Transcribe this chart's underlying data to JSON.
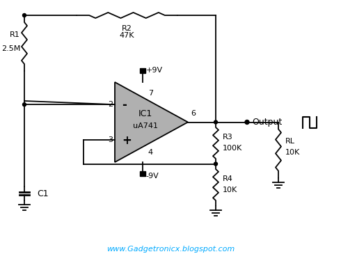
{
  "background_color": "#ffffff",
  "line_color": "#000000",
  "op_amp_fill": "#b0b0b0",
  "website_text": "www.Gadgetronicx.blogspot.com",
  "website_color": "#00aaff",
  "R1_label": "R1",
  "R1_value": "2.5M",
  "R2_label": "R2",
  "R2_value": "47K",
  "R3_label": "R3",
  "R3_value": "100K",
  "R4_label": "R4",
  "R4_value": "10K",
  "RL_label": "RL",
  "RL_value": "10K",
  "C1_label": "C1",
  "IC_label": "IC1",
  "IC_model": "uA741",
  "supply_pos": "+9V",
  "supply_neg": "-9V",
  "output_label": "Output",
  "pin2": "2",
  "pin3": "3",
  "pin4": "4",
  "pin6": "6",
  "pin7": "7"
}
